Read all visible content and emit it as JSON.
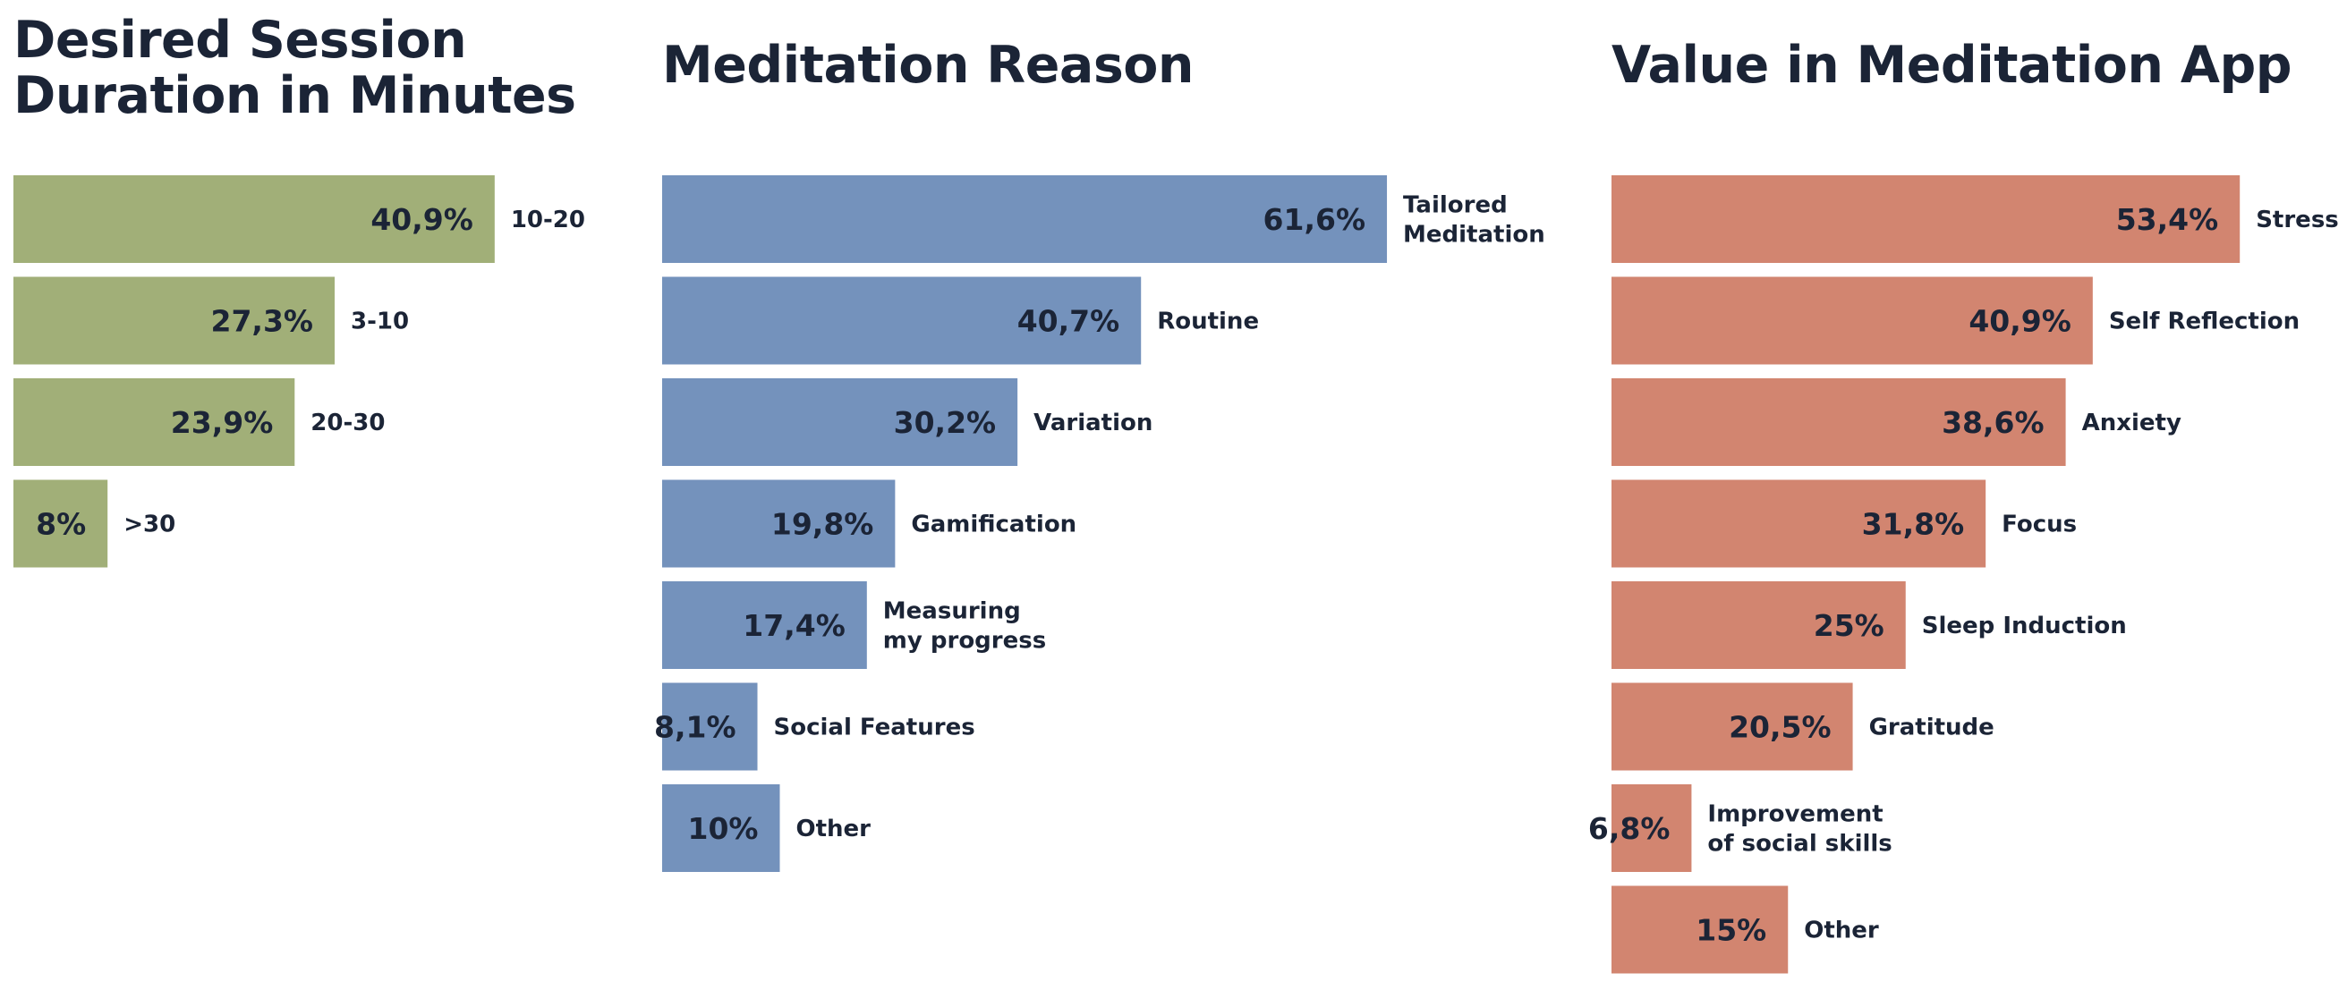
{
  "chart_data": [
    {
      "type": "bar",
      "orientation": "horizontal",
      "title": "Desired Session\nDuration in Minutes",
      "categories": [
        "10-20",
        "3-10",
        "20-30",
        ">30"
      ],
      "values": [
        40.9,
        27.3,
        23.9,
        8
      ],
      "value_labels": [
        "40,9%",
        "27,3%",
        "23,9%",
        "8%"
      ],
      "color": "#a1af78"
    },
    {
      "type": "bar",
      "orientation": "horizontal",
      "title": "Meditation Reason",
      "categories": [
        "Tailored\nMeditation",
        "Routine",
        "Variation",
        "Gamification",
        "Measuring\nmy progress",
        "Social Features",
        "Other"
      ],
      "values": [
        61.6,
        40.7,
        30.2,
        19.8,
        17.4,
        8.1,
        10
      ],
      "value_labels": [
        "61,6%",
        "40,7%",
        "30,2%",
        "19,8%",
        "17,4%",
        "8,1%",
        "10%"
      ],
      "color": "#7492bc"
    },
    {
      "type": "bar",
      "orientation": "horizontal",
      "title": "Value in Meditation App",
      "categories": [
        "Stress",
        "Self Reflection",
        "Anxiety",
        "Focus",
        "Sleep Induction",
        "Gratitude",
        "Improvement\nof social skills",
        "Other"
      ],
      "values": [
        53.4,
        40.9,
        38.6,
        31.8,
        25,
        20.5,
        6.8,
        15
      ],
      "value_labels": [
        "53,4%",
        "40,9%",
        "38,6%",
        "31,8%",
        "25%",
        "20,5%",
        "6,8%",
        "15%"
      ],
      "color": "#d28570"
    }
  ]
}
